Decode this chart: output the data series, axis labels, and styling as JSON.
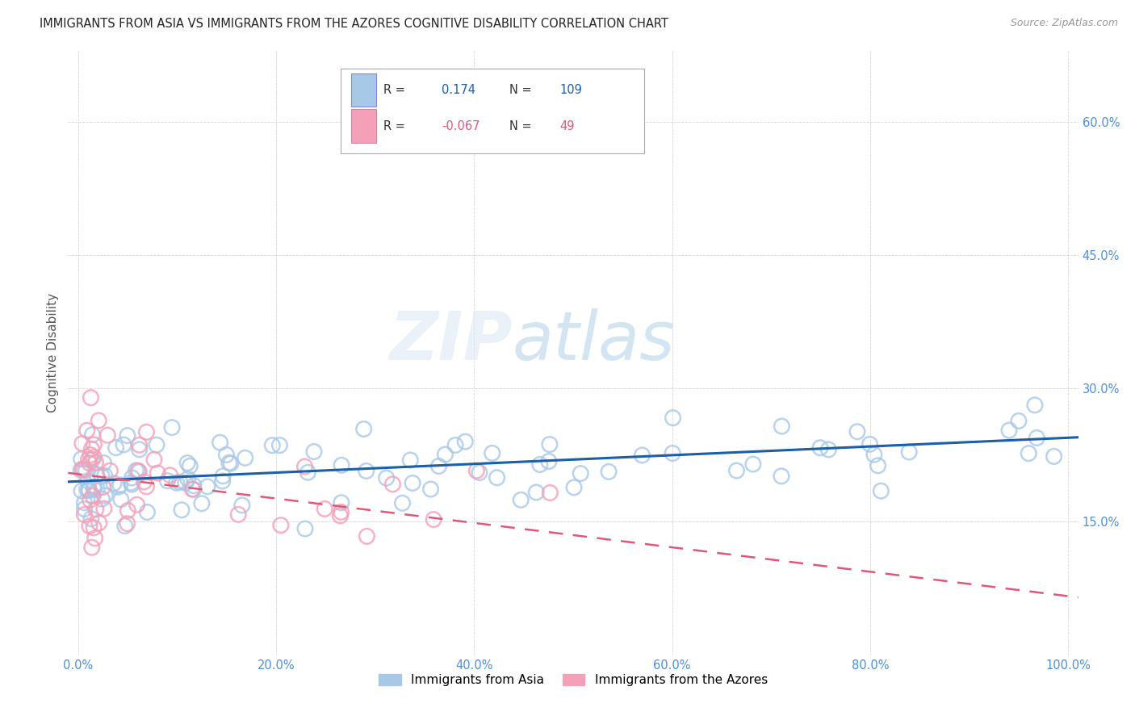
{
  "title": "IMMIGRANTS FROM ASIA VS IMMIGRANTS FROM THE AZORES COGNITIVE DISABILITY CORRELATION CHART",
  "source": "Source: ZipAtlas.com",
  "ylabel": "Cognitive Disability",
  "R_asia": 0.174,
  "N_asia": 109,
  "R_azores": -0.067,
  "N_azores": 49,
  "xlim": [
    -0.01,
    1.01
  ],
  "ylim": [
    0.0,
    0.68
  ],
  "yticks": [
    0.15,
    0.3,
    0.45,
    0.6
  ],
  "ytick_labels": [
    "15.0%",
    "30.0%",
    "45.0%",
    "60.0%"
  ],
  "xticks": [
    0.0,
    0.2,
    0.4,
    0.6,
    0.8,
    1.0
  ],
  "xtick_labels": [
    "0.0%",
    "20.0%",
    "40.0%",
    "60.0%",
    "80.0%",
    "100.0%"
  ],
  "color_asia": "#a8c8e8",
  "color_azores": "#f4a0b8",
  "line_color_asia": "#1a5fa8",
  "line_color_azores": "#e05878",
  "background": "#ffffff",
  "tick_color": "#4a90d9",
  "legend_items": [
    "Immigrants from Asia",
    "Immigrants from the Azores"
  ],
  "asia_trend_x0": 0.0,
  "asia_trend_y0": 0.195,
  "asia_trend_x1": 1.0,
  "asia_trend_y1": 0.245,
  "azores_trend_x0": 0.0,
  "azores_trend_y0": 0.205,
  "azores_trend_x1": 1.0,
  "azores_trend_y1": 0.065
}
